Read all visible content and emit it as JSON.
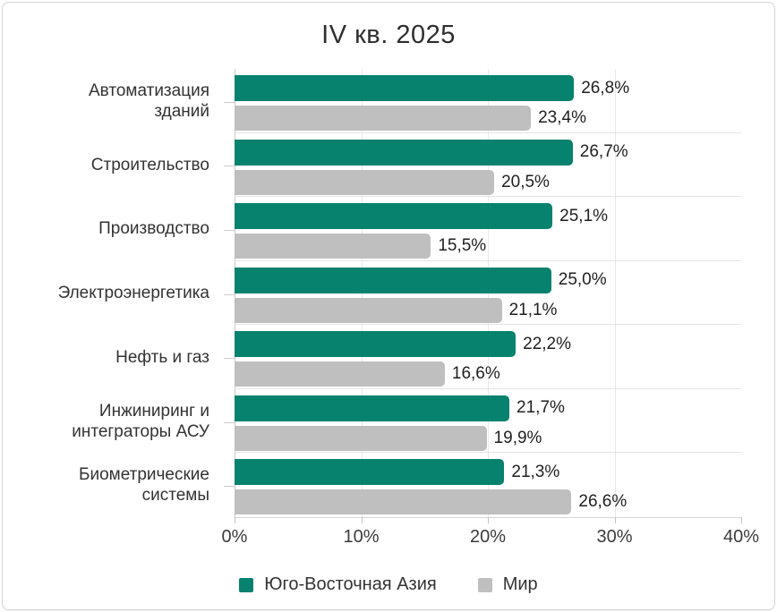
{
  "title": "IV кв. 2025",
  "chart_data": {
    "type": "bar",
    "orientation": "horizontal",
    "title": "IV кв. 2025",
    "categories": [
      {
        "name": "Автоматизация зданий",
        "lines": [
          "Автоматизация",
          "зданий"
        ]
      },
      {
        "name": "Строительство",
        "lines": [
          "Строительство"
        ]
      },
      {
        "name": "Производство",
        "lines": [
          "Производство"
        ]
      },
      {
        "name": "Электроэнергетика",
        "lines": [
          "Электроэнергетика"
        ]
      },
      {
        "name": "Нефть и газ",
        "lines": [
          "Нефть и газ"
        ]
      },
      {
        "name": "Инжиниринг и интеграторы АСУ",
        "lines": [
          "Инжиниринг и",
          "интеграторы АСУ"
        ]
      },
      {
        "name": "Биометрические системы",
        "lines": [
          "Биометрические",
          "системы"
        ]
      }
    ],
    "series": [
      {
        "key": "southeast-asia",
        "name": "Юго-Восточная Азия",
        "color": "#06826F",
        "values": [
          26.8,
          26.7,
          25.1,
          25.0,
          22.2,
          21.7,
          21.3
        ],
        "labels": [
          "26,8%",
          "26,7%",
          "25,1%",
          "25,0%",
          "22,2%",
          "21,7%",
          "21,3%"
        ]
      },
      {
        "key": "world",
        "name": "Мир",
        "color": "#BFBFBF",
        "values": [
          23.4,
          20.5,
          15.5,
          21.1,
          16.6,
          19.9,
          26.6
        ],
        "labels": [
          "23,4%",
          "20,5%",
          "15,5%",
          "21,1%",
          "16,6%",
          "19,9%",
          "26,6%"
        ]
      }
    ],
    "xlim": [
      0,
      40
    ],
    "x_ticks": [
      "0%",
      "10%",
      "20%",
      "30%",
      "40%"
    ],
    "grid": true,
    "legend_position": "bottom"
  },
  "colors": {
    "accent_green": "#06826F",
    "bar_gray": "#BFBFBF",
    "text_dark": "#2e2e2e",
    "gridline": "#e9e9e9"
  }
}
